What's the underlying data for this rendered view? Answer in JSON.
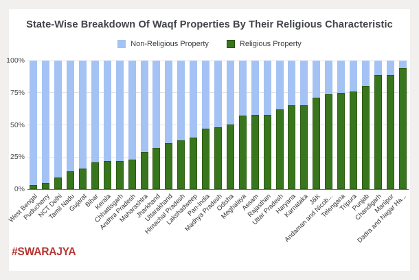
{
  "title": "State-Wise Breakdown Of Waqf Properties By Their Religious Characteristic",
  "legend": {
    "items": [
      {
        "label": "Non-Religious Property",
        "color": "#a4c2f4",
        "border": "#a4c2f4"
      },
      {
        "label": "Religious Property",
        "color": "#38761d",
        "border": "#274e13"
      }
    ]
  },
  "footer": {
    "logo_text": "#SWARAJYA",
    "logo_color": "#b63631"
  },
  "colors": {
    "non_religious": "#a4c2f4",
    "religious": "#38761d",
    "religious_border": "#2d5b13",
    "grid": "#e3e3e3",
    "axis": "#6f6f6f",
    "title_text": "#414349",
    "tick_text": "#4a4a4a",
    "category_text": "#333333",
    "background": "#ffffff",
    "page_background": "#f2efef"
  },
  "chart_data": {
    "type": "bar",
    "stacked": true,
    "title": "State-Wise Breakdown Of Waqf Properties By Their Religious Characteristic",
    "xlabel": "",
    "ylabel": "",
    "ylim": [
      0,
      100
    ],
    "yticks": [
      "0%",
      "25%",
      "50%",
      "75%",
      "100%"
    ],
    "grid": true,
    "legend_position": "top",
    "categories": [
      "West Bengal",
      "Puducherry",
      "NCT Delhi",
      "Tamil Nadu",
      "Gujarat",
      "Bihar",
      "Kerala",
      "Chhattisgarh",
      "Andhra Pradesh",
      "Maharashtra",
      "Jharkhand",
      "Uttarakhand",
      "Himachal Pradesh",
      "Lakshadweep",
      "Pan-India",
      "Madhya Pradesh",
      "Odisha",
      "Meghalaya",
      "Assam",
      "Rajasthan",
      "Uttar Pradesh",
      "Haryana",
      "Karnataka",
      "J&K",
      "Andaman and Nicob...",
      "Telengana",
      "Tripura",
      "Punjab",
      "Chandigarh",
      "Manipur",
      "Dadra and Nagar Ha..."
    ],
    "series": [
      {
        "name": "Religious Property",
        "values": [
          3,
          5,
          9,
          14,
          16,
          21,
          22,
          22,
          23,
          29,
          32,
          36,
          38,
          40,
          47,
          48,
          50,
          57,
          58,
          58,
          62,
          65,
          65,
          71,
          74,
          75,
          76,
          80,
          89,
          89,
          94
        ]
      },
      {
        "name": "Non-Religious Property",
        "values": [
          97,
          95,
          91,
          86,
          84,
          79,
          78,
          78,
          77,
          71,
          68,
          64,
          62,
          60,
          53,
          52,
          50,
          43,
          42,
          42,
          38,
          35,
          35,
          29,
          26,
          25,
          24,
          20,
          11,
          11,
          6
        ]
      }
    ]
  }
}
